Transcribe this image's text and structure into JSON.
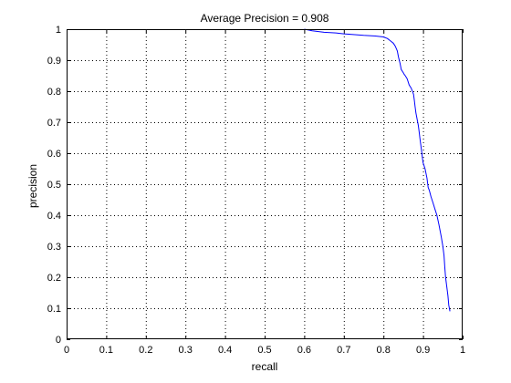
{
  "chart_data": {
    "type": "line",
    "title": "Average Precision = 0.908",
    "xlabel": "recall",
    "ylabel": "precision",
    "xlim": [
      0,
      1
    ],
    "ylim": [
      0,
      1
    ],
    "x_ticks": [
      0,
      0.1,
      0.2,
      0.3,
      0.4,
      0.5,
      0.6,
      0.7,
      0.8,
      0.9,
      1
    ],
    "y_ticks": [
      0,
      0.1,
      0.2,
      0.3,
      0.4,
      0.5,
      0.6,
      0.7,
      0.8,
      0.9,
      1
    ],
    "x_tick_labels": [
      "0",
      "0.1",
      "0.2",
      "0.3",
      "0.4",
      "0.5",
      "0.6",
      "0.7",
      "0.8",
      "0.9",
      "1"
    ],
    "y_tick_labels": [
      "0",
      "0.1",
      "0.2",
      "0.3",
      "0.4",
      "0.5",
      "0.6",
      "0.7",
      "0.8",
      "0.9",
      "1"
    ],
    "grid": true,
    "grid_style": "dotted",
    "line_color": "#0000ff",
    "axis_color": "#000000",
    "series": [
      {
        "x": [
          0.6,
          0.62,
          0.65,
          0.68,
          0.7,
          0.72,
          0.75,
          0.78,
          0.8,
          0.81,
          0.815,
          0.82,
          0.825,
          0.83,
          0.835,
          0.838,
          0.842,
          0.845,
          0.85,
          0.852,
          0.855,
          0.86,
          0.865,
          0.87,
          0.873,
          0.876,
          0.878,
          0.88,
          0.882,
          0.885,
          0.888,
          0.89,
          0.892,
          0.894,
          0.896,
          0.898,
          0.9,
          0.905,
          0.91,
          0.913,
          0.916,
          0.92,
          0.925,
          0.93,
          0.935,
          0.94,
          0.943,
          0.946,
          0.95,
          0.953,
          0.955,
          0.957,
          0.96,
          0.963,
          0.965,
          0.968
        ],
        "y": [
          1.0,
          0.995,
          0.99,
          0.988,
          0.985,
          0.983,
          0.98,
          0.978,
          0.975,
          0.97,
          0.965,
          0.96,
          0.955,
          0.945,
          0.93,
          0.91,
          0.89,
          0.87,
          0.86,
          0.855,
          0.85,
          0.84,
          0.82,
          0.81,
          0.8,
          0.79,
          0.77,
          0.75,
          0.73,
          0.71,
          0.69,
          0.67,
          0.65,
          0.63,
          0.61,
          0.59,
          0.57,
          0.55,
          0.52,
          0.49,
          0.48,
          0.46,
          0.44,
          0.42,
          0.4,
          0.37,
          0.35,
          0.33,
          0.3,
          0.27,
          0.23,
          0.2,
          0.17,
          0.14,
          0.11,
          0.09
        ]
      }
    ]
  }
}
